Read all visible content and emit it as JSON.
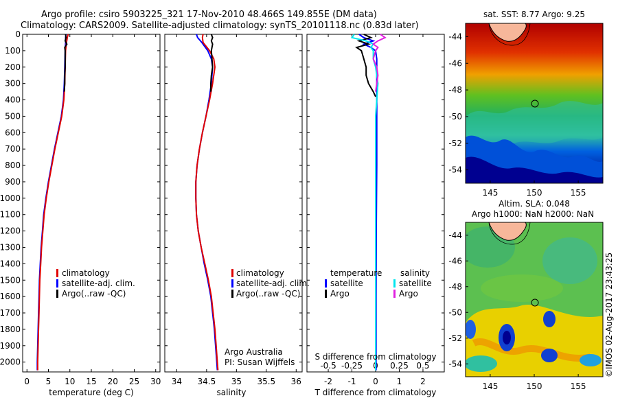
{
  "header": {
    "line1": "Argo profile: csiro 5903225_321 17-Nov-2010 48.466S 149.855E (DM data)",
    "line2": "Climatology: CARS2009. Satellite-adjusted climatology: synTS_20101118.nc (0.83d later)"
  },
  "colors": {
    "climatology": "#e00000",
    "satellite": "#0000ff",
    "argo": "#000000",
    "sat_s": "#00e5ee",
    "argo_s": "#e020e0"
  },
  "chart_data": [
    {
      "type": "line",
      "panel": "temperature",
      "xlabel": "temperature (deg C)",
      "xlim": [
        -1,
        31
      ],
      "xticks": [
        0,
        5,
        10,
        15,
        20,
        25,
        30
      ],
      "ylim": [
        2060,
        0
      ],
      "yticks": [
        0,
        100,
        200,
        300,
        400,
        500,
        600,
        700,
        800,
        900,
        1000,
        1100,
        1200,
        1300,
        1400,
        1500,
        1600,
        1700,
        1800,
        1900,
        2000
      ],
      "legend": [
        "climatology",
        "satellite-adj. clim.",
        "Argo(..raw -QC)"
      ],
      "series": [
        {
          "name": "climatology",
          "color": "#e00000",
          "depth": [
            0,
            20,
            50,
            100,
            200,
            300,
            400,
            500,
            600,
            700,
            800,
            900,
            1000,
            1100,
            1200,
            1300,
            1400,
            1500,
            1600,
            1700,
            1800,
            1900,
            2000,
            2050
          ],
          "values": [
            9.6,
            9.4,
            9.2,
            9.0,
            8.9,
            8.8,
            8.6,
            8.1,
            7.3,
            6.5,
            5.8,
            5.1,
            4.5,
            4.0,
            3.7,
            3.4,
            3.2,
            3.0,
            2.9,
            2.8,
            2.7,
            2.6,
            2.5,
            2.5
          ]
        },
        {
          "name": "satellite-adj. clim.",
          "color": "#0000ff",
          "depth": [
            0,
            20,
            50,
            100,
            200,
            300,
            400,
            500,
            600,
            700,
            800,
            900,
            1000,
            1100,
            1200,
            1300,
            1400,
            1500,
            1600,
            1700,
            1800,
            1900,
            2000,
            2050
          ],
          "values": [
            9.1,
            9.0,
            9.0,
            8.9,
            8.8,
            8.7,
            8.5,
            8.0,
            7.2,
            6.4,
            5.7,
            5.0,
            4.4,
            3.9,
            3.6,
            3.3,
            3.1,
            2.9,
            2.8,
            2.7,
            2.6,
            2.5,
            2.4,
            2.4
          ]
        },
        {
          "name": "Argo(..raw -QC)",
          "color": "#000000",
          "depth": [
            0,
            20,
            40,
            60,
            80,
            100,
            150,
            200,
            250,
            300,
            350
          ],
          "values": [
            9.0,
            9.1,
            8.9,
            9.3,
            8.8,
            8.9,
            8.9,
            8.9,
            8.8,
            8.8,
            8.7
          ]
        }
      ]
    },
    {
      "type": "line",
      "panel": "salinity",
      "xlabel": "salinity",
      "xlim": [
        33.8,
        36.1
      ],
      "xticks": [
        34,
        34.5,
        35,
        35.5,
        36
      ],
      "ylim": [
        2060,
        0
      ],
      "legend": [
        "climatology",
        "satellite-adj. clim.",
        "Argo(..raw -QC)"
      ],
      "annotation": [
        "Argo Australia",
        "PI: Susan Wijffels"
      ],
      "series": [
        {
          "name": "climatology",
          "color": "#e00000",
          "depth": [
            0,
            20,
            50,
            100,
            150,
            200,
            300,
            400,
            500,
            600,
            700,
            800,
            900,
            1000,
            1100,
            1200,
            1300,
            1400,
            1500,
            1600,
            1700,
            1800,
            1900,
            2000,
            2050
          ],
          "values": [
            34.44,
            34.43,
            34.44,
            34.55,
            34.62,
            34.64,
            34.6,
            34.55,
            34.49,
            34.43,
            34.38,
            34.34,
            34.32,
            34.32,
            34.33,
            34.36,
            34.41,
            34.47,
            34.53,
            34.58,
            34.61,
            34.64,
            34.66,
            34.68,
            34.69
          ]
        },
        {
          "name": "satellite-adj. clim.",
          "color": "#0000ff",
          "depth": [
            0,
            20,
            50,
            100,
            150,
            200,
            300,
            400,
            500,
            600,
            700,
            800,
            900,
            1000,
            1100,
            1200,
            1300,
            1400,
            1500,
            1600,
            1700,
            1800,
            1900,
            2000,
            2050
          ],
          "values": [
            34.33,
            34.35,
            34.42,
            34.52,
            34.58,
            34.6,
            34.58,
            34.54,
            34.49,
            34.43,
            34.38,
            34.34,
            34.32,
            34.32,
            34.33,
            34.36,
            34.41,
            34.46,
            34.52,
            34.57,
            34.6,
            34.63,
            34.65,
            34.67,
            34.68
          ]
        },
        {
          "name": "Argo(..raw -QC)",
          "color": "#000000",
          "depth": [
            0,
            20,
            40,
            60,
            80,
            100,
            150,
            200,
            250,
            300,
            350
          ],
          "values": [
            34.58,
            34.6,
            34.58,
            34.6,
            34.59,
            34.58,
            34.59,
            34.6,
            34.58,
            34.57,
            34.57
          ]
        }
      ]
    },
    {
      "type": "line",
      "panel": "differences",
      "xlabel": "T difference from climatology",
      "xlabel_top": "S difference from climatology",
      "xlim": [
        -2.9,
        2.9
      ],
      "xticks": [
        -2,
        -1,
        0,
        1,
        2
      ],
      "xticks_top": [
        -0.5,
        -0.25,
        0,
        0.25,
        0.5
      ],
      "ylim": [
        2060,
        0
      ],
      "legend_headers": [
        "temperature",
        "salinity"
      ],
      "legend": [
        [
          "satellite",
          "satellite"
        ],
        [
          "Argo",
          "Argo"
        ]
      ],
      "series": [
        {
          "name": "satellite",
          "color": "#0000ff",
          "depth": [
            0,
            20,
            40,
            60,
            80,
            100,
            150,
            200,
            300,
            500,
            800,
            1200,
            1600,
            2000,
            2050
          ],
          "values": [
            -0.7,
            -0.5,
            -0.1,
            -0.5,
            -0.2,
            0.0,
            0.05,
            0.05,
            0.05,
            0.05,
            0.05,
            0.03,
            0.02,
            0.02,
            0.02
          ]
        },
        {
          "name": "Argo",
          "color": "#000000",
          "depth": [
            0,
            20,
            40,
            60,
            80,
            100,
            150,
            200,
            250,
            300,
            350,
            380
          ],
          "values": [
            -0.5,
            -0.2,
            -0.7,
            -0.3,
            -0.8,
            -0.6,
            -0.5,
            -0.4,
            -0.4,
            -0.3,
            -0.1,
            0.0
          ]
        },
        {
          "name": "satellite",
          "color": "#00e5ee",
          "depth": [
            0,
            20,
            40,
            60,
            80,
            100,
            150,
            200,
            300,
            400,
            500,
            800,
            1200,
            1600,
            2000,
            2050
          ],
          "values": [
            -0.9,
            -1.0,
            -0.4,
            -0.1,
            -0.2,
            -0.1,
            -0.1,
            0.0,
            0.1,
            0.05,
            0.0,
            0.0,
            0.0,
            0.0,
            0.0,
            0.0
          ]
        },
        {
          "name": "Argo",
          "color": "#e020e0",
          "depth": [
            0,
            20,
            40,
            60,
            80,
            100,
            150,
            200,
            250,
            300,
            350
          ],
          "values": [
            0.2,
            0.4,
            0.1,
            -0.1,
            0.1,
            0.0,
            -0.1,
            0.05,
            0.1,
            0.05,
            0.0
          ]
        }
      ]
    },
    {
      "type": "heatmap",
      "panel": "sst-map",
      "title": "sat. SST: 8.77 Argo: 9.25",
      "xticks": [
        145,
        150,
        155
      ],
      "yticks": [
        -44,
        -46,
        -48,
        -50,
        -52,
        -54
      ],
      "xlim": [
        142.2,
        157.8
      ],
      "ylim": [
        -55,
        -43
      ],
      "marker": {
        "lon": 149.855,
        "lat": -48.466
      }
    },
    {
      "type": "heatmap",
      "panel": "sla-map",
      "title": "Altim. SLA: 0.048",
      "subtitle": "Argo h1000: NaN h2000: NaN",
      "xticks": [
        145,
        150,
        155
      ],
      "yticks": [
        -44,
        -46,
        -48,
        -50,
        -52,
        -54
      ],
      "xlim": [
        142.2,
        157.8
      ],
      "ylim": [
        -55,
        -43
      ],
      "marker": {
        "lon": 149.855,
        "lat": -48.466
      }
    }
  ],
  "side_text": "©IMOS 02-Aug-2017 23:43:25"
}
